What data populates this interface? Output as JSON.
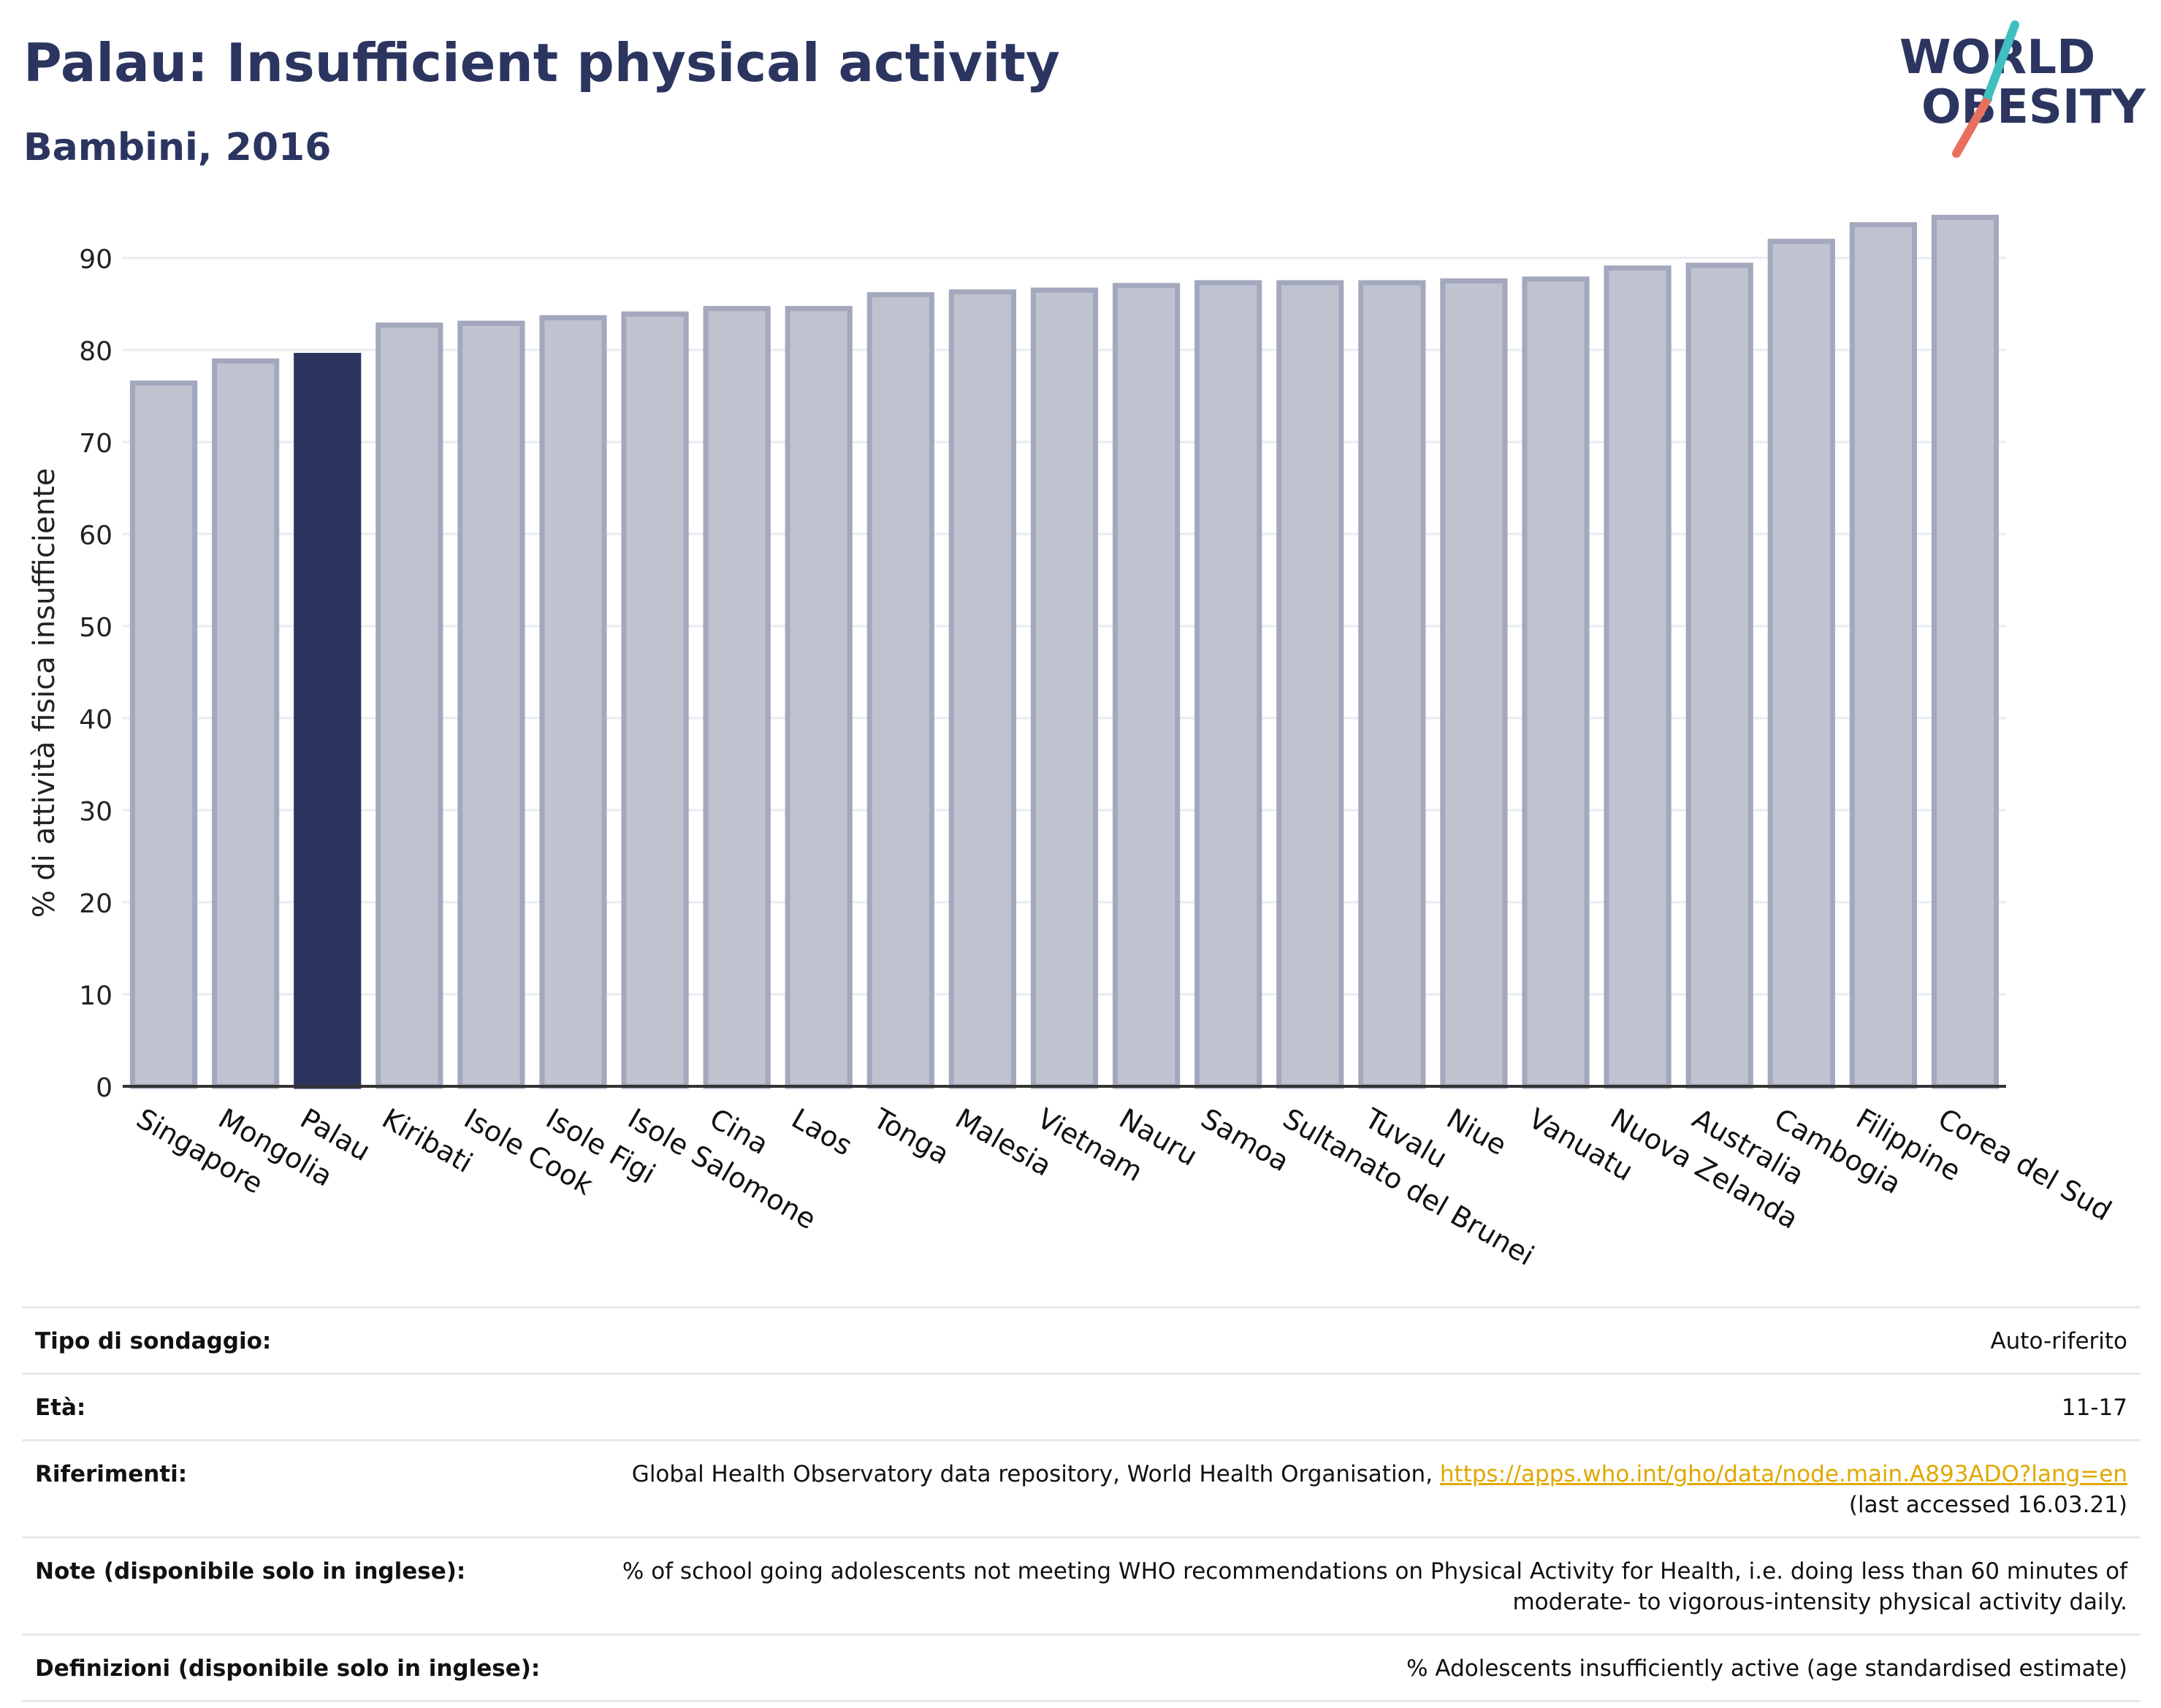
{
  "header": {
    "title": "Palau: Insufficient physical activity",
    "subtitle": "Bambini, 2016"
  },
  "logo": {
    "line1": "WORLD",
    "line2": "OBESITY"
  },
  "colors": {
    "highlight": "#2b3560",
    "bar": "#bfc3d0",
    "bar_border": "#a3a8bd",
    "grid": "#e9ebf0",
    "logo_teal": "#3fbfbf",
    "logo_coral": "#e8705f"
  },
  "chart_data": {
    "type": "bar",
    "ylabel": "% di attività fisica insufficiente",
    "xlabel": "",
    "ylim": [
      0,
      95
    ],
    "yticks": [
      0,
      10,
      20,
      30,
      40,
      50,
      60,
      70,
      80,
      90
    ],
    "grid": true,
    "highlight": "Palau",
    "categories": [
      "Singapore",
      "Mongolia",
      "Palau",
      "Kiribati",
      "Isole Cook",
      "Isole Figi",
      "Isole Salomone",
      "Cina",
      "Laos",
      "Tonga",
      "Malesia",
      "Vietnam",
      "Nauru",
      "Samoa",
      "Sultanato del Brunei",
      "Tuvalu",
      "Niue",
      "Vanuatu",
      "Nuova Zelanda",
      "Australia",
      "Cambogia",
      "Filippine",
      "Corea del Sud"
    ],
    "values": [
      76.4,
      78.8,
      79.4,
      82.7,
      82.9,
      83.5,
      83.9,
      84.5,
      84.5,
      86.0,
      86.3,
      86.5,
      87.0,
      87.3,
      87.3,
      87.3,
      87.5,
      87.7,
      88.9,
      89.2,
      91.8,
      93.6,
      94.4
    ]
  },
  "info": {
    "rows": [
      {
        "label": "Tipo di sondaggio:",
        "value": "Auto-riferito"
      },
      {
        "label": "Età:",
        "value": "11-17"
      },
      {
        "label": "Riferimenti:",
        "value": "Global Health Observatory data repository, World Health Organisation,",
        "link": "https://apps.who.int/gho/data/node.main.A893ADO?lang=en",
        "value2": "(last accessed 16.03.21)"
      },
      {
        "label": "Note (disponibile solo in inglese):",
        "value": "% of school going adolescents not meeting WHO recommendations on Physical Activity for Health, i.e. doing less than 60 minutes of",
        "value2": "moderate- to vigorous-intensity physical activity daily."
      },
      {
        "label": "Definizioni (disponibile solo in inglese):",
        "value": "% Adolescents insufficiently active (age standardised estimate)"
      }
    ]
  }
}
